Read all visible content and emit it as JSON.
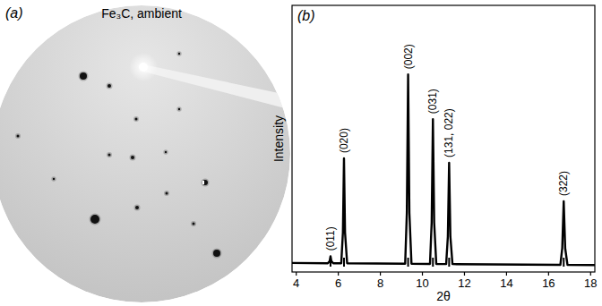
{
  "panel_a": {
    "label": "(a)",
    "title": "Fe₃C, ambient"
  },
  "chart_data": {
    "type": "line",
    "label": "(b)",
    "xlabel": "2θ",
    "ylabel": "Intensity",
    "x": [
      3.8,
      5.5,
      5.59,
      5.63,
      5.67,
      5.76,
      6.14,
      6.22,
      6.27,
      6.32,
      6.42,
      9.18,
      9.26,
      9.32,
      9.38,
      9.48,
      10.36,
      10.44,
      10.5,
      10.56,
      10.66,
      11.13,
      11.21,
      11.27,
      11.33,
      11.43,
      16.56,
      16.65,
      16.72,
      16.79,
      16.9,
      18.2
    ],
    "values": [
      4.6,
      4.4,
      5.5,
      8,
      5.5,
      4.4,
      4.4,
      20,
      57.5,
      20,
      4.4,
      4.2,
      30,
      100,
      30,
      4.2,
      4.1,
      25,
      77.4,
      25,
      4.1,
      4.0,
      18,
      55.3,
      18,
      4.0,
      3.6,
      12,
      35.8,
      12,
      3.6,
      3.5
    ],
    "color": "#000000",
    "xlim": [
      3.8,
      18.2
    ],
    "xticks": [
      4,
      6,
      8,
      10,
      12,
      14,
      16,
      18
    ],
    "ylim": [
      0,
      135
    ],
    "tick_labels": "x",
    "grid": false,
    "reflections": [
      {
        "label": "(011)",
        "x": 5.63,
        "peak": 8
      },
      {
        "label": "(020)",
        "x": 6.27,
        "peak": 57.5
      },
      {
        "label": "(002)",
        "x": 9.32,
        "peak": 100
      },
      {
        "label": "(031)",
        "x": 10.5,
        "peak": 77.4
      },
      {
        "label": "(131, 022)",
        "x": 11.27,
        "peak": 55.3
      },
      {
        "label": "(322)",
        "x": 16.72,
        "peak": 35.8
      }
    ]
  }
}
